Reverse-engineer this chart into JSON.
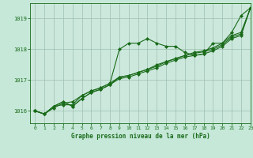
{
  "title": "Graphe pression niveau de la mer (hPa)",
  "bg_color": "#c5e8d8",
  "plot_bg_color": "#cce8dc",
  "line_color": "#1a6b1a",
  "xlim": [
    -0.5,
    23
  ],
  "ylim": [
    1015.6,
    1019.5
  ],
  "yticks": [
    1016,
    1017,
    1018,
    1019
  ],
  "xticks": [
    0,
    1,
    2,
    3,
    4,
    5,
    6,
    7,
    8,
    9,
    10,
    11,
    12,
    13,
    14,
    15,
    16,
    17,
    18,
    19,
    20,
    21,
    22,
    23
  ],
  "series": [
    [
      1016.0,
      1015.9,
      1016.15,
      1016.2,
      1016.2,
      1016.5,
      1016.65,
      1016.75,
      1016.9,
      1018.0,
      1018.2,
      1018.2,
      1018.35,
      1018.2,
      1018.1,
      1018.1,
      1017.9,
      1017.8,
      1017.85,
      1018.2,
      1018.2,
      1018.55,
      1019.1,
      1019.35
    ],
    [
      1016.0,
      1015.9,
      1016.15,
      1016.3,
      1016.15,
      1016.4,
      1016.6,
      1016.7,
      1016.85,
      1017.05,
      1017.1,
      1017.2,
      1017.3,
      1017.4,
      1017.55,
      1017.65,
      1017.75,
      1017.8,
      1017.85,
      1017.95,
      1018.1,
      1018.35,
      1018.45,
      1019.35
    ],
    [
      1016.0,
      1015.9,
      1016.15,
      1016.3,
      1016.15,
      1016.4,
      1016.6,
      1016.7,
      1016.85,
      1017.1,
      1017.15,
      1017.25,
      1017.35,
      1017.45,
      1017.6,
      1017.7,
      1017.8,
      1017.87,
      1017.92,
      1018.0,
      1018.15,
      1018.4,
      1018.5,
      1019.35
    ],
    [
      1016.0,
      1015.9,
      1016.1,
      1016.25,
      1016.3,
      1016.5,
      1016.65,
      1016.75,
      1016.9,
      1017.1,
      1017.15,
      1017.25,
      1017.35,
      1017.5,
      1017.6,
      1017.7,
      1017.8,
      1017.9,
      1017.95,
      1018.05,
      1018.2,
      1018.45,
      1018.55,
      1019.35
    ]
  ]
}
